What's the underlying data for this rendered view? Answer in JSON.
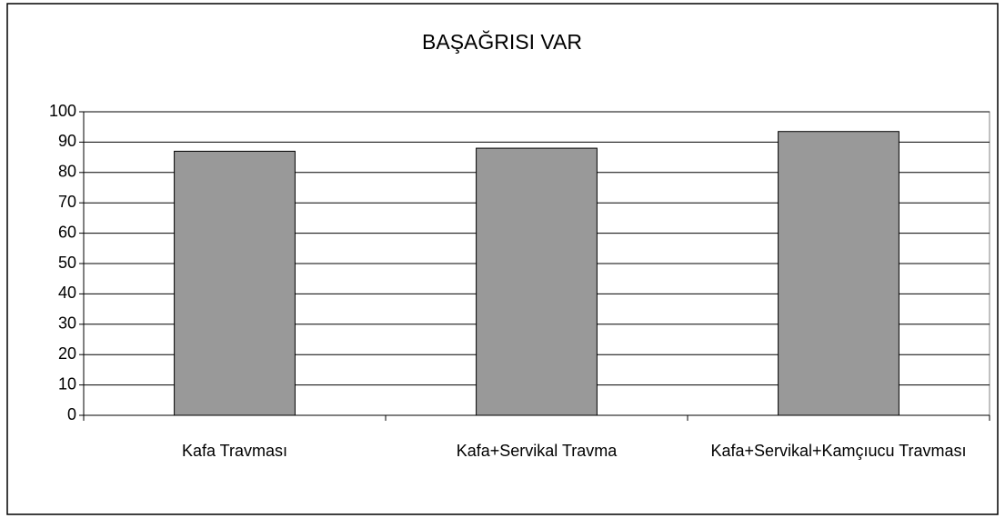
{
  "chart_data": {
    "type": "bar",
    "title": "BAŞAĞRISI VAR",
    "categories": [
      "Kafa Travması",
      "Kafa+Servikal Travma",
      "Kafa+Servikal+Kamçıucu Travması"
    ],
    "values": [
      87,
      88,
      93.5
    ],
    "color": "#999999",
    "ylim": [
      0,
      100
    ],
    "yticks": [
      0,
      10,
      20,
      30,
      40,
      50,
      60,
      70,
      80,
      90,
      100
    ],
    "grid": true
  }
}
